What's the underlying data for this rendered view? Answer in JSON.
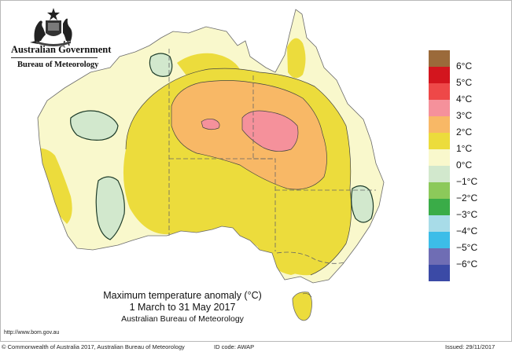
{
  "header": {
    "org": "Australian Government",
    "bureau": "Bureau of Meteorology"
  },
  "caption": {
    "title": "Maximum temperature anomaly (°C)",
    "period": "1 March to 31 May 2017",
    "source": "Australian Bureau of Meteorology"
  },
  "url": "http://www.bom.gov.au",
  "footer": {
    "copyright": "© Commonwealth of Australia 2017, Australian Bureau of Meteorology",
    "id_code": "ID code: AWAP",
    "issued": "Issued: 29/11/2017"
  },
  "legend": {
    "labels": [
      "6°C",
      "5°C",
      "4°C",
      "3°C",
      "2°C",
      "1°C",
      "0°C",
      "−1°C",
      "−2°C",
      "−3°C",
      "−4°C",
      "−5°C",
      "−6°C"
    ],
    "colors": [
      "#9b6a3a",
      "#d3151e",
      "#ee4848",
      "#f5919b",
      "#f8b866",
      "#ecdc3c",
      "#f9f8cc",
      "#d2e8cd",
      "#8cc95a",
      "#3aac48",
      "#a8dce8",
      "#3cbde8",
      "#6f6db4",
      "#3b4aa6"
    ]
  }
}
